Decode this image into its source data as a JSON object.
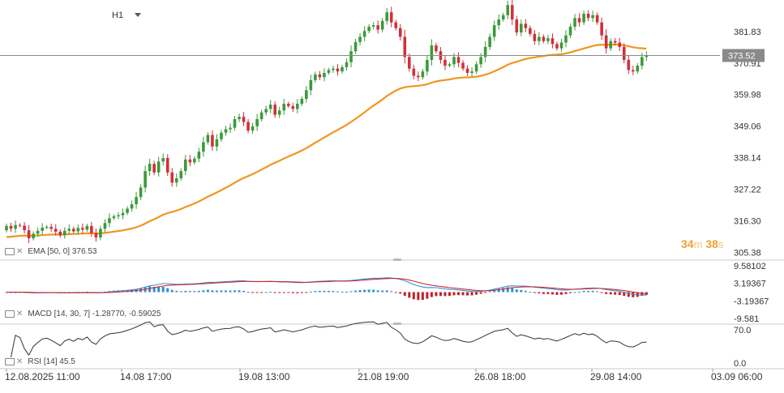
{
  "timeframe": {
    "label": "H1"
  },
  "current_price": "373.52",
  "countdown": {
    "minutes": "34",
    "m": "m",
    "seconds": "38",
    "s": "s"
  },
  "indicators": {
    "ema_label": "EMA [50, 0] 376.53",
    "macd_label": "MACD [14, 30, 7] -1.28770, -0.59025",
    "rsi_label": "RSI [14] 45.5"
  },
  "colors": {
    "bull": "#3a9a3a",
    "bear": "#d0303a",
    "ema": "#f0961e",
    "macd_line": "#3a8fd6",
    "signal_line": "#d02828",
    "hist_pos": "#2f8fcf",
    "hist_neg": "#c0202a",
    "rsi_line": "#333333"
  },
  "chart_data": [
    {
      "type": "candlestick",
      "name": "price",
      "x_ticks": [
        "12.08.2025  11:00",
        "14.08  17:00",
        "19.08  13:00",
        "21.08  19:00",
        "26.08  18:00",
        "29.08  14:00",
        "03.09  06:00"
      ],
      "y_ticks": [
        305.38,
        316.3,
        327.22,
        338.14,
        349.06,
        359.98,
        370.91,
        381.83
      ],
      "y_range": [
        303.5,
        390.5
      ],
      "current_price": 373.52,
      "overlays": [
        {
          "name": "EMA [50, 0]",
          "last_value": 376.53
        }
      ],
      "closes": [
        314.5,
        313.5,
        314.8,
        314.6,
        313.0,
        310.2,
        311.8,
        312.8,
        313.9,
        314.2,
        313.5,
        312.5,
        311.2,
        312.8,
        313.5,
        312.6,
        313.8,
        313.2,
        314.5,
        312.0,
        310.5,
        313.5,
        315.5,
        317.2,
        317.8,
        318.2,
        319.0,
        320.5,
        322.0,
        324.5,
        327.8,
        333.5,
        336.0,
        333.0,
        336.8,
        338.0,
        333.0,
        329.5,
        331.0,
        333.5,
        337.5,
        336.5,
        337.8,
        340.2,
        343.5,
        346.0,
        342.0,
        344.5,
        346.8,
        348.0,
        348.5,
        351.5,
        352.3,
        350.5,
        347.5,
        349.0,
        351.5,
        353.8,
        355.0,
        356.5,
        353.0,
        354.5,
        356.8,
        356.0,
        355.0,
        356.8,
        358.5,
        361.5,
        365.0,
        367.0,
        366.0,
        367.5,
        368.5,
        369.0,
        368.0,
        369.5,
        371.2,
        375.0,
        378.2,
        380.0,
        382.0,
        383.5,
        384.0,
        382.5,
        385.5,
        388.5,
        385.0,
        383.0,
        380.0,
        373.0,
        369.0,
        366.5,
        366.0,
        368.0,
        372.0,
        377.0,
        375.0,
        372.0,
        370.0,
        370.5,
        373.0,
        371.0,
        369.0,
        367.5,
        368.0,
        370.5,
        373.0,
        376.5,
        380.0,
        384.0,
        386.0,
        387.5,
        391.0,
        386.0,
        381.5,
        384.5,
        383.0,
        381.0,
        378.5,
        380.0,
        378.5,
        379.5,
        377.5,
        376.0,
        378.0,
        380.5,
        383.5,
        386.5,
        385.0,
        388.0,
        386.5,
        387.5,
        385.0,
        380.5,
        376.0,
        378.5,
        378.0,
        376.5,
        372.0,
        368.5,
        368.0,
        370.0,
        373.0,
        373.5
      ]
    },
    {
      "type": "line",
      "name": "MACD [14, 30, 7]",
      "y_ticks": [
        9.58102,
        3.19367,
        -3.19367,
        -9.581
      ],
      "values": [
        -1.2877,
        -0.59025
      ]
    },
    {
      "type": "line",
      "name": "RSI [14]",
      "y_ticks": [
        70.0,
        0.0
      ],
      "values": [
        45.5
      ]
    }
  ]
}
